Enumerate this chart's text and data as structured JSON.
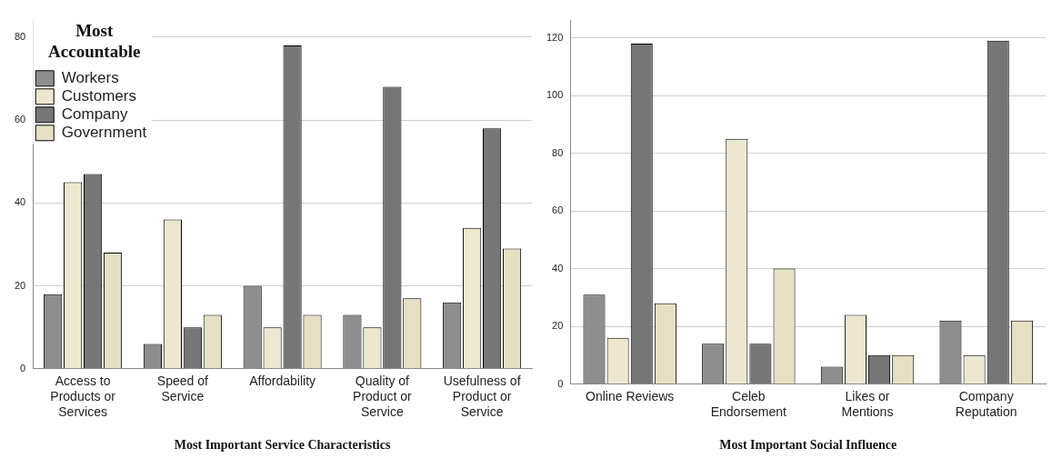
{
  "chart_data": [
    {
      "type": "bar",
      "xlabel": "Most Important Service Characteristics",
      "legend_title": "Most Accountable",
      "legend": "top left",
      "grid": "y",
      "categories": [
        "Access to Products or Services",
        "Speed of Service",
        "Affordability",
        "Quality of Product or Service",
        "Usefulness of Product or Service"
      ],
      "ylim": [
        0,
        84
      ],
      "yticks": [
        0,
        20,
        40,
        60,
        80
      ],
      "series": [
        {
          "name": "Workers",
          "color": "#8e8e8e",
          "values": [
            18,
            6,
            20,
            13,
            16
          ]
        },
        {
          "name": "Customers",
          "color": "#ede7d0",
          "values": [
            45,
            36,
            10,
            10,
            34
          ]
        },
        {
          "name": "Company",
          "color": "#767676",
          "values": [
            47,
            10,
            78,
            68,
            58
          ]
        },
        {
          "name": "Government",
          "color": "#e6dfc3",
          "values": [
            28,
            13,
            13,
            17,
            29
          ]
        }
      ]
    },
    {
      "type": "bar",
      "xlabel": "Most Important Social Influence",
      "grid": "y",
      "categories": [
        "Online Reviews",
        "Celeb Endorsement",
        "Likes or Mentions",
        "Company Reputation"
      ],
      "ylim": [
        0,
        126
      ],
      "yticks": [
        0,
        20,
        40,
        60,
        80,
        100,
        120
      ],
      "series": [
        {
          "color": "#8e8e8e",
          "values": [
            31,
            14,
            6,
            22
          ]
        },
        {
          "color": "#ede7d0",
          "values": [
            16,
            85,
            24,
            10
          ]
        },
        {
          "color": "#767676",
          "values": [
            118,
            14,
            10,
            119
          ]
        },
        {
          "color": "#e6dfc3",
          "values": [
            28,
            40,
            10,
            22
          ]
        }
      ]
    }
  ]
}
